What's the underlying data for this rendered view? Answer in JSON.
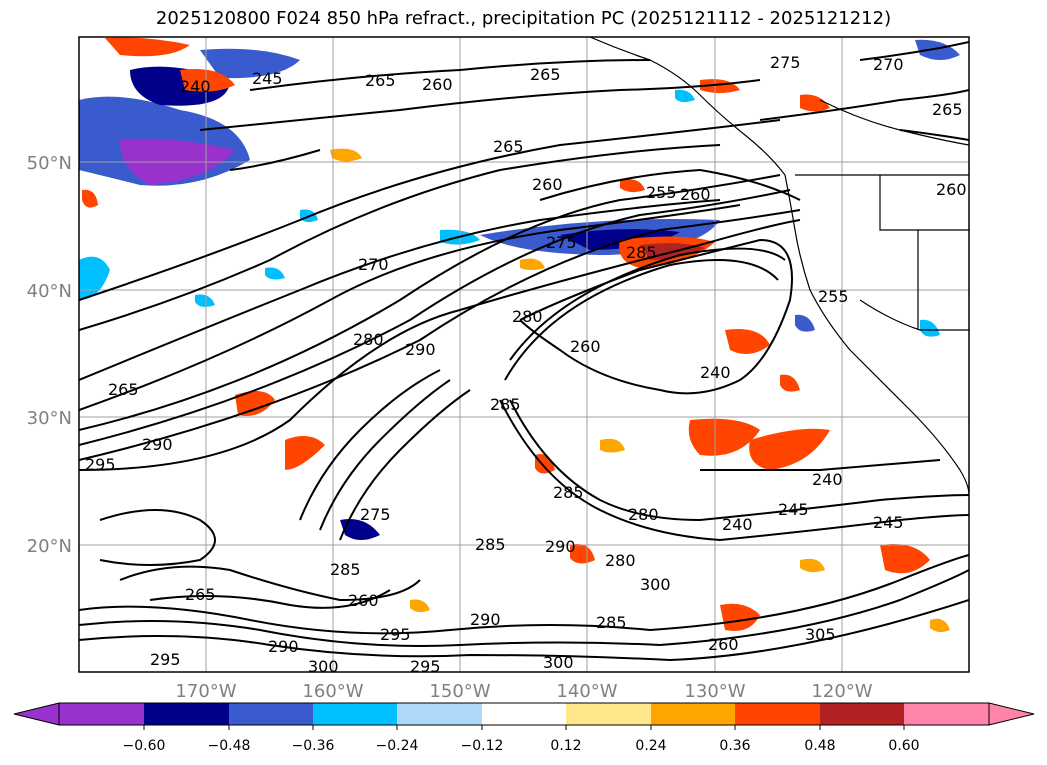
{
  "title": "2025120800 F024 850 hPa refract., precipitation PC (2025121112 - 2025121212)",
  "map": {
    "lat_labels": [
      "50°N",
      "40°N",
      "30°N",
      "20°N"
    ],
    "lon_labels": [
      "170°W",
      "160°W",
      "150°W",
      "140°W",
      "130°W",
      "120°W"
    ],
    "grid_color": "#a0a0a0",
    "contour_color": "#000000",
    "coastline_color": "#000000",
    "contour_labels": [
      "240",
      "245",
      "265",
      "260",
      "265",
      "265",
      "275",
      "270",
      "260",
      "265",
      "260",
      "255",
      "260",
      "275",
      "285",
      "270",
      "280",
      "290",
      "280",
      "260",
      "240",
      "265",
      "290",
      "295",
      "275",
      "285",
      "290",
      "285",
      "280",
      "300",
      "265",
      "285",
      "290",
      "295",
      "300",
      "285",
      "305",
      "260",
      "245",
      "240",
      "245",
      "240",
      "290",
      "295",
      "300",
      "295",
      "285",
      "280",
      "260",
      "255"
    ]
  },
  "colorbar": {
    "tick_labels": [
      "−0.60",
      "−0.48",
      "−0.36",
      "−0.24",
      "−0.12",
      "0.12",
      "0.24",
      "0.36",
      "0.48",
      "0.60"
    ],
    "colors": [
      "#9932cc",
      "#00008b",
      "#3a5bcd",
      "#00bfff",
      "#add8f7",
      "#ffffff",
      "#ffe88c",
      "#ffa500",
      "#ff4500",
      "#b22222",
      "#ff85a8"
    ]
  }
}
